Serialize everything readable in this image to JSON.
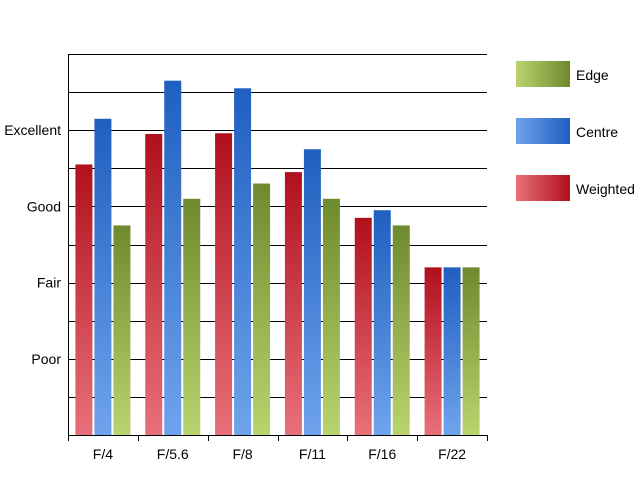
{
  "chart_data": {
    "type": "bar",
    "categories": [
      "F/4",
      "F/5.6",
      "F/8",
      "F/11",
      "F/16",
      "F/22"
    ],
    "series": [
      {
        "name": "Weighted",
        "values": [
          3.55,
          3.95,
          3.96,
          3.45,
          2.85,
          2.2
        ]
      },
      {
        "name": "Centre",
        "values": [
          4.15,
          4.65,
          4.55,
          3.75,
          2.95,
          2.2
        ]
      },
      {
        "name": "Edge",
        "values": [
          2.75,
          3.1,
          3.3,
          3.1,
          2.75,
          2.2
        ]
      }
    ],
    "y_tick_labels": [
      {
        "value": 1,
        "label": "Poor"
      },
      {
        "value": 2,
        "label": "Fair"
      },
      {
        "value": 3,
        "label": "Good"
      },
      {
        "value": 4,
        "label": "Excellent"
      }
    ],
    "ylim": [
      0,
      5
    ],
    "grid_step": 0.5,
    "grid": true,
    "legend_order": [
      "Edge",
      "Centre",
      "Weighted"
    ],
    "legend_position": "right",
    "colors": {
      "Weighted": {
        "light": "#e8707a",
        "dark": "#b0101c"
      },
      "Centre": {
        "light": "#6fa3ec",
        "dark": "#1f5fbf"
      },
      "Edge": {
        "light": "#b9d46e",
        "dark": "#6e8a2e"
      }
    }
  }
}
